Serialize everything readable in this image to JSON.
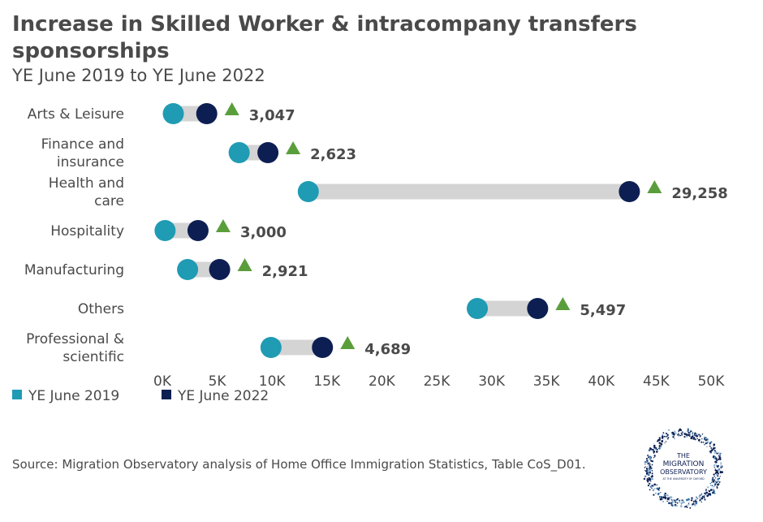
{
  "title": "Increase in Skilled Worker & intracompany transfers sponsorships",
  "subtitle": "YE June 2019 to YE June 2022",
  "source": "Source: Migration Observatory analysis of Home Office Immigration Statistics, Table CoS_D01.",
  "logo": {
    "line1": "THE",
    "line2": "MIGRATION",
    "line3": "OBSERVATORY",
    "line4": "AT THE UNIVERSITY OF OXFORD"
  },
  "colors": {
    "ye2019": "#1f9bb3",
    "ye2022": "#0d1f52",
    "connector": "#d4d4d4",
    "increase_marker": "#5a9e3c",
    "text": "#4a4a4a"
  },
  "chart_data": {
    "type": "dumbbell",
    "x_ticks": [
      0,
      5000,
      10000,
      15000,
      20000,
      25000,
      30000,
      35000,
      40000,
      45000,
      50000
    ],
    "x_tick_labels": [
      "0K",
      "5K",
      "10K",
      "15K",
      "20K",
      "25K",
      "30K",
      "35K",
      "40K",
      "45K",
      "50K"
    ],
    "xlim": [
      0,
      50000
    ],
    "legend": [
      {
        "name": "YE June 2019",
        "color": "#1f9bb3"
      },
      {
        "name": "YE June 2022",
        "color": "#0d1f52"
      }
    ],
    "legend_position": "bottom-left",
    "categories": [
      {
        "label_lines": [
          "Arts & Leisure"
        ],
        "ye2019": 1000,
        "ye2022": 4047,
        "increase_label": "3,047",
        "increase": 3047
      },
      {
        "label_lines": [
          "Finance and",
          "insurance"
        ],
        "ye2019": 7000,
        "ye2022": 9623,
        "increase_label": "2,623",
        "increase": 2623
      },
      {
        "label_lines": [
          "Health and",
          "care"
        ],
        "ye2019": 13300,
        "ye2022": 42558,
        "increase_label": "29,258",
        "increase": 29258
      },
      {
        "label_lines": [
          "Hospitality"
        ],
        "ye2019": 250,
        "ye2022": 3250,
        "increase_label": "3,000",
        "increase": 3000
      },
      {
        "label_lines": [
          "Manufacturing"
        ],
        "ye2019": 2300,
        "ye2022": 5221,
        "increase_label": "2,921",
        "increase": 2921
      },
      {
        "label_lines": [
          "Others"
        ],
        "ye2019": 28700,
        "ye2022": 34197,
        "increase_label": "5,497",
        "increase": 5497
      },
      {
        "label_lines": [
          "Professional &",
          "scientific"
        ],
        "ye2019": 9900,
        "ye2022": 14589,
        "increase_label": "4,689",
        "increase": 4689
      }
    ]
  }
}
